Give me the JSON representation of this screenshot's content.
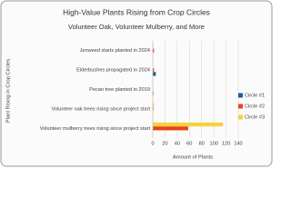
{
  "chart_data": {
    "type": "hbar",
    "title": "High-Value Plants Rising from Crop Circles",
    "subtitle": "Volunteer Oak, Volunteer Mulberry, and More",
    "y_label": "Plant Rising in Crop Circles",
    "x_label": "Amount of Plants",
    "categories": [
      "Jenweed starts planted in 2024",
      "Elderbushes propagated in 2024",
      "Pecan tree planted in 2019",
      "Volunteer oak trees rising since project start",
      "Volunteer mulberry trees rising since project start"
    ],
    "series": [
      {
        "name": "Circle #1",
        "color": "#1f5c99",
        "values": [
          0,
          5,
          1,
          0,
          0
        ]
      },
      {
        "name": "Circle #2",
        "color": "#e8431c",
        "values": [
          2,
          2,
          0,
          1,
          58
        ]
      },
      {
        "name": "Circle #3",
        "color": "#f7d13b",
        "values": [
          1,
          0,
          0,
          2,
          115
        ]
      }
    ],
    "xlim": [
      0,
      140
    ],
    "xticks": [
      0,
      20,
      40,
      60,
      80,
      100,
      120,
      140
    ],
    "grid": true,
    "legend": "right"
  }
}
